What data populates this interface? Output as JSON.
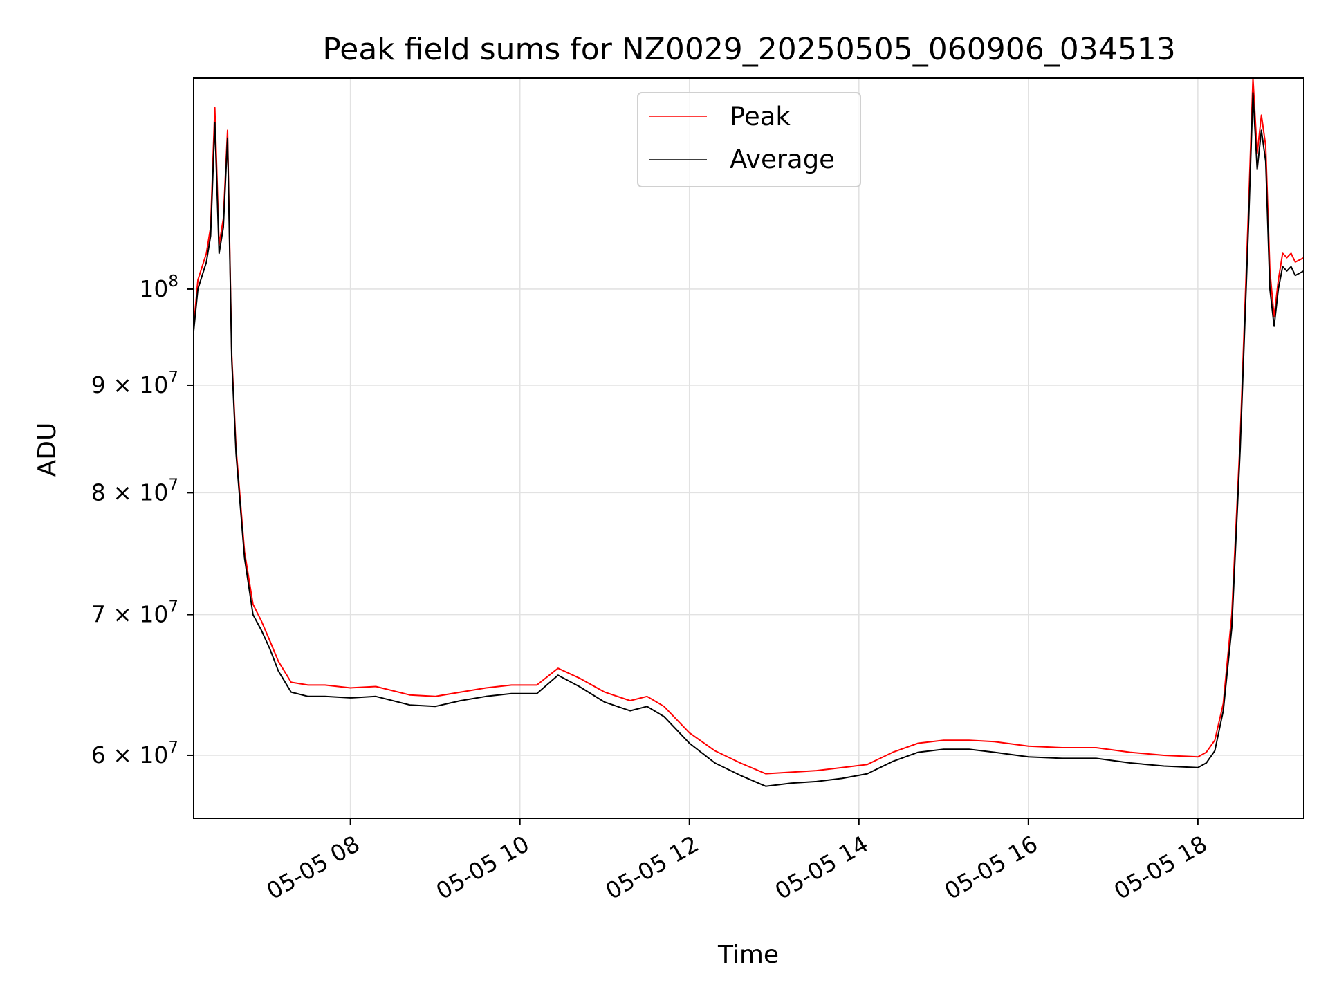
{
  "chart_data": {
    "type": "line",
    "title": "Peak field sums for NZ0029_20250505_060906_034513",
    "xlabel": "Time",
    "ylabel": "ADU",
    "x_axis": {
      "kind": "time",
      "range_hours": [
        6.15,
        19.25
      ],
      "ticks": [
        {
          "hour": 8,
          "label": "05-05 08"
        },
        {
          "hour": 10,
          "label": "05-05 10"
        },
        {
          "hour": 12,
          "label": "05-05 12"
        },
        {
          "hour": 14,
          "label": "05-05 14"
        },
        {
          "hour": 16,
          "label": "05-05 16"
        },
        {
          "hour": 18,
          "label": "05-05 18"
        }
      ]
    },
    "y_axis": {
      "scale": "log",
      "range": [
        56000000,
        126000000
      ],
      "ticks": [
        {
          "value": 60000000,
          "base": "6 × 10",
          "exp": "7"
        },
        {
          "value": 70000000,
          "base": "7 × 10",
          "exp": "7"
        },
        {
          "value": 80000000,
          "base": "8 × 10",
          "exp": "7"
        },
        {
          "value": 90000000,
          "base": "9 × 10",
          "exp": "7"
        },
        {
          "value": 100000000,
          "base": "10",
          "exp": "8"
        }
      ]
    },
    "grid": true,
    "legend_position": "top-center",
    "series": [
      {
        "name": "Peak",
        "color": "#ff0000",
        "x_hours": [
          6.15,
          6.2,
          6.3,
          6.35,
          6.4,
          6.45,
          6.5,
          6.55,
          6.6,
          6.65,
          6.75,
          6.85,
          6.95,
          7.05,
          7.15,
          7.3,
          7.5,
          7.7,
          8.0,
          8.3,
          8.7,
          9.0,
          9.3,
          9.6,
          9.9,
          10.2,
          10.45,
          10.7,
          11.0,
          11.3,
          11.5,
          11.7,
          12.0,
          12.3,
          12.6,
          12.9,
          13.2,
          13.5,
          13.8,
          14.1,
          14.4,
          14.7,
          15.0,
          15.3,
          15.6,
          16.0,
          16.4,
          16.8,
          17.2,
          17.6,
          18.0,
          18.1,
          18.2,
          18.3,
          18.4,
          18.5,
          18.6,
          18.65,
          18.7,
          18.75,
          18.8,
          18.85,
          18.9,
          18.95,
          19.0,
          19.05,
          19.1,
          19.15,
          19.25
        ],
        "values": [
          96000000,
          101000000,
          104000000,
          107000000,
          122000000,
          105000000,
          108000000,
          119000000,
          93000000,
          84000000,
          75000000,
          70800000,
          69500000,
          68000000,
          66500000,
          65000000,
          64800000,
          64800000,
          64600000,
          64700000,
          64100000,
          64000000,
          64300000,
          64600000,
          64800000,
          64800000,
          66000000,
          65300000,
          64300000,
          63700000,
          64000000,
          63300000,
          61500000,
          60300000,
          59500000,
          58800000,
          58900000,
          59000000,
          59200000,
          59400000,
          60200000,
          60800000,
          61000000,
          61000000,
          60900000,
          60600000,
          60500000,
          60500000,
          60200000,
          60000000,
          59900000,
          60200000,
          61000000,
          63500000,
          70000000,
          85000000,
          110000000,
          126000000,
          116000000,
          121000000,
          117000000,
          102000000,
          97000000,
          101000000,
          104000000,
          103500000,
          104000000,
          103000000,
          103500000
        ]
      },
      {
        "name": "Average",
        "color": "#000000",
        "x_hours": [
          6.15,
          6.2,
          6.3,
          6.35,
          6.4,
          6.45,
          6.5,
          6.55,
          6.6,
          6.65,
          6.75,
          6.85,
          6.95,
          7.05,
          7.15,
          7.3,
          7.5,
          7.7,
          8.0,
          8.3,
          8.7,
          9.0,
          9.3,
          9.6,
          9.9,
          10.2,
          10.45,
          10.7,
          11.0,
          11.3,
          11.5,
          11.7,
          12.0,
          12.3,
          12.6,
          12.9,
          13.2,
          13.5,
          13.8,
          14.1,
          14.4,
          14.7,
          15.0,
          15.3,
          15.6,
          16.0,
          16.4,
          16.8,
          17.2,
          17.6,
          18.0,
          18.1,
          18.2,
          18.3,
          18.4,
          18.5,
          18.6,
          18.65,
          18.7,
          18.75,
          18.8,
          18.85,
          18.9,
          18.95,
          19.0,
          19.05,
          19.1,
          19.15,
          19.25
        ],
        "values": [
          95500000,
          100000000,
          103000000,
          106000000,
          120000000,
          104000000,
          107000000,
          118000000,
          92500000,
          83500000,
          74500000,
          70000000,
          68800000,
          67400000,
          65800000,
          64300000,
          64000000,
          64000000,
          63900000,
          64000000,
          63400000,
          63300000,
          63700000,
          64000000,
          64200000,
          64200000,
          65500000,
          64700000,
          63600000,
          63000000,
          63300000,
          62600000,
          60800000,
          59500000,
          58700000,
          58000000,
          58200000,
          58300000,
          58500000,
          58800000,
          59600000,
          60200000,
          60400000,
          60400000,
          60200000,
          59900000,
          59800000,
          59800000,
          59500000,
          59300000,
          59200000,
          59500000,
          60300000,
          63000000,
          69000000,
          84000000,
          108000000,
          124000000,
          114000000,
          119000000,
          115000000,
          100000000,
          96000000,
          100000000,
          102500000,
          102000000,
          102500000,
          101500000,
          102000000
        ]
      }
    ]
  }
}
